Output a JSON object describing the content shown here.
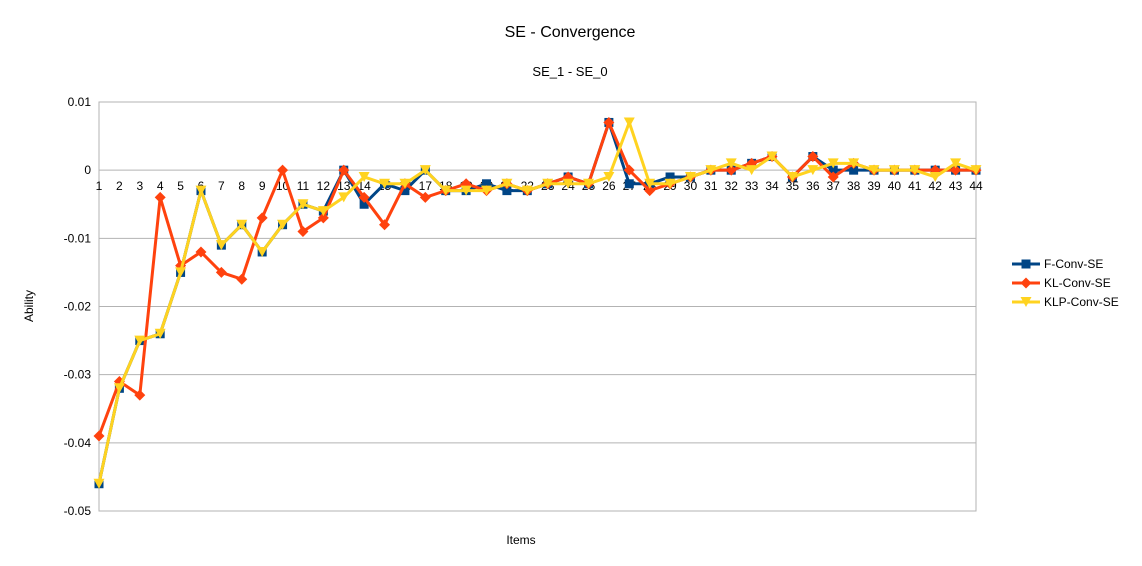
{
  "chart_data": {
    "type": "line",
    "title": "SE - Convergence",
    "subtitle": "SE_1  -  SE_0",
    "xlabel": "Items",
    "ylabel": "Ability",
    "ylim": [
      -0.05,
      0.01
    ],
    "yticks": [
      0.01,
      0,
      -0.01,
      -0.02,
      -0.03,
      -0.04,
      -0.05
    ],
    "ytick_labels": [
      "0.01",
      "0",
      "-0.01",
      "-0.02",
      "-0.03",
      "-0.04",
      "-0.05"
    ],
    "grid": true,
    "legend_position": "right",
    "categories": [
      "1",
      "2",
      "3",
      "4",
      "5",
      "6",
      "7",
      "8",
      "9",
      "10",
      "11",
      "12",
      "13",
      "14",
      "15",
      "16",
      "17",
      "18",
      "19",
      "20",
      "21",
      "22",
      "23",
      "24",
      "25",
      "26",
      "27",
      "28",
      "29",
      "30",
      "31",
      "32",
      "33",
      "34",
      "35",
      "36",
      "37",
      "38",
      "39",
      "40",
      "41",
      "42",
      "43",
      "44"
    ],
    "series": [
      {
        "name": "F-Conv-SE",
        "color": "#004586",
        "marker": "square",
        "values": [
          -0.046,
          -0.032,
          -0.025,
          -0.024,
          -0.015,
          -0.003,
          -0.011,
          -0.008,
          -0.012,
          -0.008,
          -0.005,
          -0.006,
          0.0,
          -0.005,
          -0.002,
          -0.003,
          0.0,
          -0.003,
          -0.003,
          -0.002,
          -0.003,
          -0.003,
          -0.002,
          -0.001,
          -0.002,
          0.007,
          -0.002,
          -0.002,
          -0.001,
          -0.001,
          0.0,
          0.0,
          0.001,
          0.002,
          -0.001,
          0.002,
          0.0,
          0.0,
          0.0,
          0.0,
          0.0,
          0.0,
          0.0,
          0.0
        ]
      },
      {
        "name": "KL-Conv-SE",
        "color": "#ff420e",
        "marker": "diamond",
        "values": [
          -0.039,
          -0.031,
          -0.033,
          -0.004,
          -0.014,
          -0.012,
          -0.015,
          -0.016,
          -0.007,
          0.0,
          -0.009,
          -0.007,
          0.0,
          -0.004,
          -0.008,
          -0.002,
          -0.004,
          -0.003,
          -0.002,
          -0.003,
          -0.002,
          -0.003,
          -0.002,
          -0.001,
          -0.002,
          0.007,
          0.0,
          -0.003,
          -0.002,
          -0.001,
          0.0,
          0.0,
          0.001,
          0.002,
          -0.001,
          0.002,
          -0.001,
          0.001,
          0.0,
          0.0,
          0.0,
          0.0,
          0.0,
          0.0
        ]
      },
      {
        "name": "KLP-Conv-SE",
        "color": "#ffd320",
        "marker": "triangle-down",
        "values": [
          -0.046,
          -0.032,
          -0.025,
          -0.024,
          -0.015,
          -0.003,
          -0.011,
          -0.008,
          -0.012,
          -0.008,
          -0.005,
          -0.006,
          -0.004,
          -0.001,
          -0.002,
          -0.002,
          0.0,
          -0.003,
          -0.003,
          -0.003,
          -0.002,
          -0.003,
          -0.002,
          -0.002,
          -0.002,
          -0.001,
          0.007,
          -0.002,
          -0.002,
          -0.001,
          0.0,
          0.001,
          0.0,
          0.002,
          -0.001,
          0.0,
          0.001,
          0.001,
          0.0,
          0.0,
          0.0,
          -0.001,
          0.001,
          0.0
        ]
      }
    ]
  }
}
